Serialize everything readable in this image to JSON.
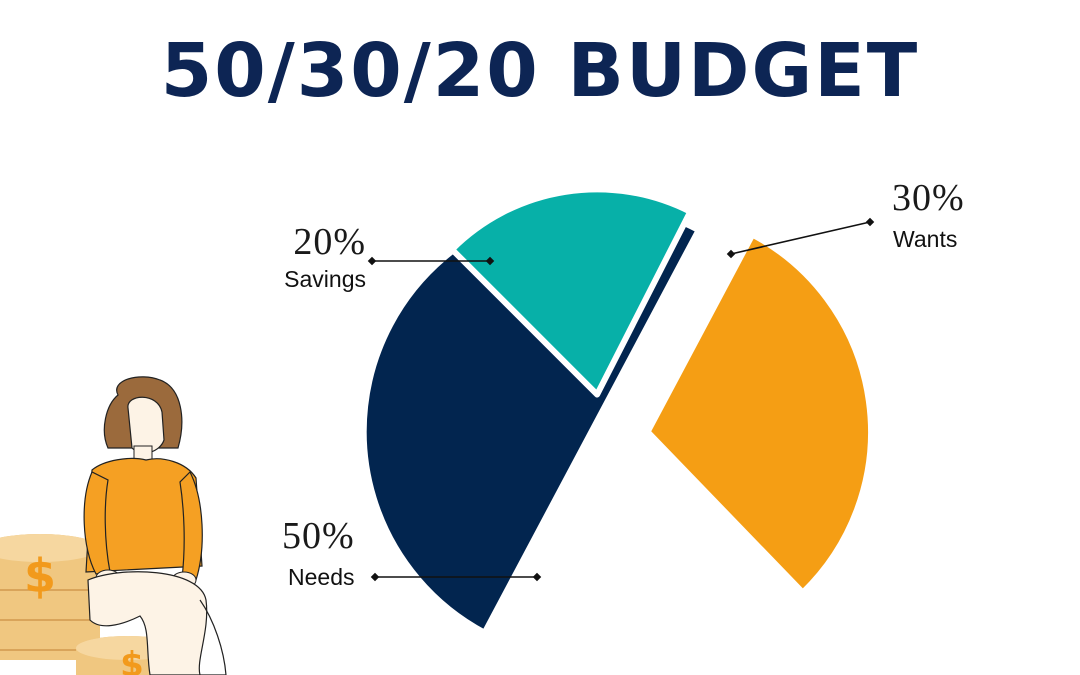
{
  "title": "50/30/20 BUDGET",
  "colors": {
    "title": "#0d2554",
    "needs": "#02254f",
    "wants": "#f59e14",
    "savings": "#07b0a8",
    "coin": "#f0c780",
    "dollar": "#f29a1c",
    "shirt": "#f5a023",
    "hair": "#9b6a3c"
  },
  "chart_data": {
    "type": "pie",
    "slices": [
      {
        "label": "Needs",
        "value": 50,
        "percent_text": "50%",
        "color": "#02254f"
      },
      {
        "label": "Wants",
        "value": 30,
        "percent_text": "30%",
        "color": "#f59e14"
      },
      {
        "label": "Savings",
        "value": 20,
        "percent_text": "20%",
        "color": "#07b0a8"
      }
    ],
    "legend": "none",
    "style": "exploded"
  },
  "illustration": {
    "figure": "woman-sitting-on-coins",
    "coin_symbol": "$"
  }
}
